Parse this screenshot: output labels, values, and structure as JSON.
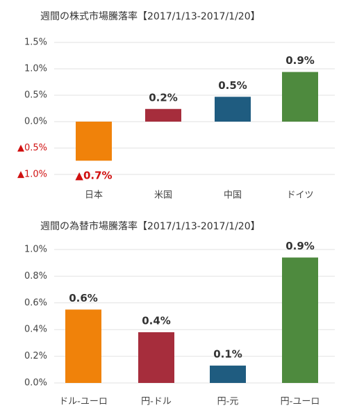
{
  "chart_data": [
    {
      "type": "bar",
      "title": "週間の株式市場騰落率【2017/1/13-2017/1/20】",
      "categories": [
        "日本",
        "米国",
        "中国",
        "ドイツ"
      ],
      "values": [
        -0.74,
        0.24,
        0.47,
        0.94
      ],
      "value_labels": [
        "▲0.7%",
        "0.2%",
        "0.5%",
        "0.9%"
      ],
      "colors": [
        "#f0820a",
        "#a62d3c",
        "#1f5c80",
        "#4e8a3e"
      ],
      "ylim": [
        -1.0,
        1.5
      ],
      "yticks": [
        {
          "value": -1.0,
          "label": "▲1.0%"
        },
        {
          "value": -0.5,
          "label": "▲0.5%"
        },
        {
          "value": 0,
          "label": "0.0%"
        },
        {
          "value": 0.5,
          "label": "0.5%"
        },
        {
          "value": 1.0,
          "label": "1.0%"
        },
        {
          "value": 1.5,
          "label": "1.5%"
        }
      ],
      "grid": true
    },
    {
      "type": "bar",
      "title": "週間の為替市場騰落率【2017/1/13-2017/1/20】",
      "categories": [
        "ドル-ユーロ",
        "円-ドル",
        "円-元",
        "円-ユーロ"
      ],
      "values": [
        0.55,
        0.38,
        0.13,
        0.94
      ],
      "value_labels": [
        "0.6%",
        "0.4%",
        "0.1%",
        "0.9%"
      ],
      "colors": [
        "#f0820a",
        "#a62d3c",
        "#1f5c80",
        "#4e8a3e"
      ],
      "ylim": [
        0,
        1.0
      ],
      "yticks": [
        {
          "value": 0,
          "label": "0.0%"
        },
        {
          "value": 0.2,
          "label": "0.2%"
        },
        {
          "value": 0.4,
          "label": "0.4%"
        },
        {
          "value": 0.6,
          "label": "0.6%"
        },
        {
          "value": 0.8,
          "label": "0.8%"
        },
        {
          "value": 1.0,
          "label": "1.0%"
        }
      ],
      "grid": true
    }
  ]
}
